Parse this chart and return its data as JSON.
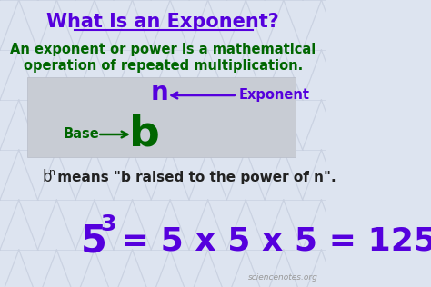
{
  "title": "What Is an Exponent?",
  "title_color": "#5500dd",
  "subtitle_line1": "An exponent or power is a mathematical",
  "subtitle_line2": "operation of repeated multiplication.",
  "subtitle_color": "#006600",
  "bg_color": "#dde4f0",
  "box_facecolor": "#c8ccd4",
  "box_edgecolor": "#b8bcc8",
  "green_color": "#006600",
  "purple_color": "#5500dd",
  "dark_color": "#222222",
  "watermark": "sciencenotes.org",
  "watermark_color": "#999999",
  "tri_color": "#c8d0e0"
}
